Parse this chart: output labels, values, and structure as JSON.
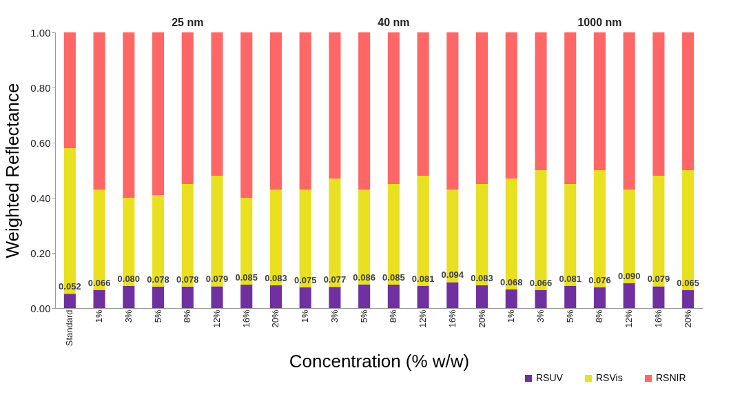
{
  "chart_data": {
    "type": "bar",
    "stacked": true,
    "xlabel": "Concentration (% w/w)",
    "ylabel": "Weighted Reflectance",
    "categories": [
      "Standard",
      "1%",
      "3%",
      "5%",
      "8%",
      "12%",
      "16%",
      "20%",
      "1%",
      "3%",
      "5%",
      "8%",
      "12%",
      "16%",
      "20%",
      "1%",
      "3%",
      "5%",
      "8%",
      "12%",
      "16%",
      "20%"
    ],
    "series": [
      {
        "name": "RSUV",
        "color": "#7030a0",
        "values": [
          0.052,
          0.066,
          0.08,
          0.078,
          0.078,
          0.079,
          0.085,
          0.083,
          0.075,
          0.077,
          0.086,
          0.085,
          0.081,
          0.094,
          0.083,
          0.068,
          0.066,
          0.081,
          0.076,
          0.09,
          0.079,
          0.065
        ],
        "value_labels": [
          "0.052",
          "0.066",
          "0.080",
          "0.078",
          "0.078",
          "0.079",
          "0.085",
          "0.083",
          "0.075",
          "0.077",
          "0.086",
          "0.085",
          "0.081",
          "0.094",
          "0.083",
          "0.068",
          "0.066",
          "0.081",
          "0.076",
          "0.090",
          "0.079",
          "0.065"
        ]
      },
      {
        "name": "RSVis",
        "color": "#e8e020",
        "values": [
          0.528,
          0.364,
          0.32,
          0.332,
          0.372,
          0.401,
          0.315,
          0.347,
          0.355,
          0.393,
          0.344,
          0.365,
          0.399,
          0.336,
          0.367,
          0.402,
          0.434,
          0.369,
          0.424,
          0.34,
          0.401,
          0.435
        ]
      },
      {
        "name": "RSNIR",
        "color": "#ff6666",
        "values": [
          0.42,
          0.57,
          0.6,
          0.59,
          0.55,
          0.52,
          0.6,
          0.57,
          0.57,
          0.53,
          0.57,
          0.55,
          0.52,
          0.57,
          0.55,
          0.53,
          0.5,
          0.55,
          0.5,
          0.57,
          0.52,
          0.5
        ]
      }
    ],
    "ylim": [
      0,
      1
    ],
    "yticks": [
      {
        "value": 0,
        "label": "0.00"
      },
      {
        "value": 0.2,
        "label": "0.20"
      },
      {
        "value": 0.4,
        "label": "0.40"
      },
      {
        "value": 0.6,
        "label": "0.60"
      },
      {
        "value": 0.8,
        "label": "0.80"
      },
      {
        "value": 1,
        "label": "1.00"
      }
    ],
    "annotations": [
      "25 nm",
      "40 nm",
      "1000 nm"
    ],
    "legend": "bottom right",
    "grid": false
  }
}
